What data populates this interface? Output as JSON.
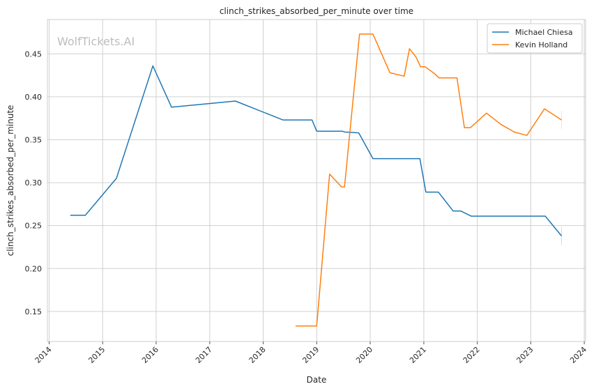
{
  "chart_data": {
    "type": "line",
    "title": "clinch_strikes_absorbed_per_minute over time",
    "xlabel": "Date",
    "ylabel": "clinch_strikes_absorbed_per_minute",
    "watermark": "WolfTickets.AI",
    "grid": true,
    "legend_position": "top-right",
    "xlim": [
      "2013-12-20",
      "2024-01-10"
    ],
    "ylim": [
      0.115,
      0.49
    ],
    "x_ticks": [
      "2014",
      "2015",
      "2016",
      "2017",
      "2018",
      "2019",
      "2020",
      "2021",
      "2022",
      "2023",
      "2024"
    ],
    "y_ticks": [
      "0.15",
      "0.20",
      "0.25",
      "0.30",
      "0.35",
      "0.40",
      "0.45"
    ],
    "series": [
      {
        "name": "Michael Chiesa",
        "color": "#1f77b4",
        "points": [
          [
            "2014-05-25",
            0.262
          ],
          [
            "2014-09-05",
            0.262
          ],
          [
            "2015-04-05",
            0.305
          ],
          [
            "2015-12-10",
            0.436
          ],
          [
            "2016-04-15",
            0.388
          ],
          [
            "2017-06-25",
            0.395
          ],
          [
            "2018-05-15",
            0.373
          ],
          [
            "2018-11-30",
            0.373
          ],
          [
            "2019-01-01",
            0.36
          ],
          [
            "2019-06-25",
            0.36
          ],
          [
            "2019-07-10",
            0.359
          ],
          [
            "2019-10-15",
            0.358
          ],
          [
            "2020-01-20",
            0.328
          ],
          [
            "2020-12-05",
            0.328
          ],
          [
            "2021-01-15",
            0.289
          ],
          [
            "2021-04-10",
            0.289
          ],
          [
            "2021-07-20",
            0.267
          ],
          [
            "2021-09-10",
            0.267
          ],
          [
            "2021-11-20",
            0.261
          ],
          [
            "2023-04-10",
            0.261
          ],
          [
            "2023-07-30",
            0.238
          ]
        ]
      },
      {
        "name": "Kevin Holland",
        "color": "#ff7f0e",
        "points": [
          [
            "2018-08-10",
            0.133
          ],
          [
            "2019-01-01",
            0.133
          ],
          [
            "2019-03-30",
            0.31
          ],
          [
            "2019-06-20",
            0.295
          ],
          [
            "2019-07-10",
            0.295
          ],
          [
            "2019-10-20",
            0.473
          ],
          [
            "2020-01-20",
            0.473
          ],
          [
            "2020-05-15",
            0.428
          ],
          [
            "2020-08-20",
            0.424
          ],
          [
            "2020-09-25",
            0.456
          ],
          [
            "2020-11-10",
            0.446
          ],
          [
            "2020-12-10",
            0.435
          ],
          [
            "2021-01-10",
            0.435
          ],
          [
            "2021-03-15",
            0.427
          ],
          [
            "2021-04-15",
            0.422
          ],
          [
            "2021-08-15",
            0.422
          ],
          [
            "2021-10-05",
            0.364
          ],
          [
            "2021-11-15",
            0.364
          ],
          [
            "2022-03-05",
            0.381
          ],
          [
            "2022-06-10",
            0.368
          ],
          [
            "2022-09-10",
            0.359
          ],
          [
            "2022-12-05",
            0.355
          ],
          [
            "2023-04-05",
            0.386
          ],
          [
            "2023-07-30",
            0.373
          ]
        ]
      }
    ]
  }
}
